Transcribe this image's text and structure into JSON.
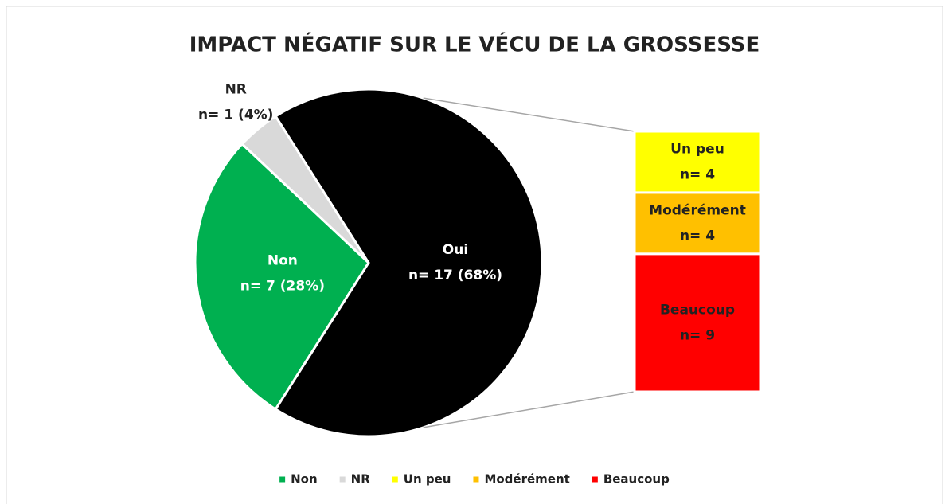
{
  "chart_data": {
    "type": "bar-of-pie",
    "title": "IMPACT NÉGATIF SUR LE VÉCU DE LA GROSSESSE",
    "categories": [
      "Non",
      "NR",
      "Oui"
    ],
    "values": [
      7,
      1,
      17
    ],
    "value_labels": [
      "n= 7 (28%)",
      "n= 1 (4%)",
      "n= 17 (68%)"
    ],
    "colors": [
      "#00b050",
      "#d9d9d9",
      "#000000"
    ],
    "breakdown": {
      "categories": [
        "Un peu",
        "Modérément",
        "Beaucoup"
      ],
      "values": [
        4,
        4,
        9
      ],
      "value_labels": [
        "n= 4",
        "n= 4",
        "n= 9"
      ],
      "colors": [
        "#ffff00",
        "#ffc000",
        "#ff0000"
      ]
    },
    "legend": "bottom"
  }
}
